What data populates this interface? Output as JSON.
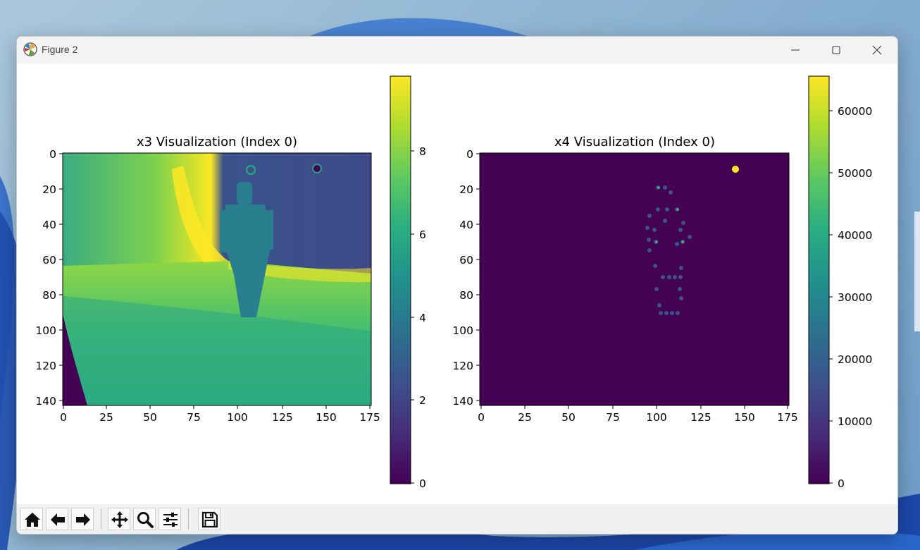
{
  "window": {
    "title": "Figure 2"
  },
  "charts": [
    {
      "id": "x3",
      "title": "x3 Visualization (Index 0)",
      "xticks": [
        "0",
        "25",
        "50",
        "75",
        "100",
        "125",
        "150",
        "175"
      ],
      "yticks": [
        "0",
        "20",
        "40",
        "60",
        "80",
        "100",
        "120",
        "140"
      ],
      "colorbar_ticks": [
        "0",
        "2",
        "4",
        "6",
        "8"
      ]
    },
    {
      "id": "x4",
      "title": "x4 Visualization (Index 0)",
      "xticks": [
        "0",
        "25",
        "50",
        "75",
        "100",
        "125",
        "150",
        "175"
      ],
      "yticks": [
        "0",
        "20",
        "40",
        "60",
        "80",
        "100",
        "120",
        "140"
      ],
      "colorbar_ticks": [
        "0",
        "10000",
        "20000",
        "30000",
        "40000",
        "50000",
        "60000"
      ]
    }
  ],
  "chart_data": [
    {
      "type": "heatmap",
      "title": "x3 Visualization (Index 0)",
      "colormap": "viridis",
      "xlim": [
        0,
        176
      ],
      "ylim": [
        144,
        0
      ],
      "xticks": [
        0,
        25,
        50,
        75,
        100,
        125,
        150,
        175
      ],
      "yticks": [
        0,
        20,
        40,
        60,
        80,
        100,
        120,
        140
      ],
      "color_range": [
        0,
        9.8
      ],
      "colorbar_ticks": [
        0,
        2,
        4,
        6,
        8
      ]
    },
    {
      "type": "heatmap",
      "title": "x4 Visualization (Index 0)",
      "colormap": "viridis",
      "xlim": [
        0,
        176
      ],
      "ylim": [
        144,
        0
      ],
      "xticks": [
        0,
        25,
        50,
        75,
        100,
        125,
        150,
        175
      ],
      "yticks": [
        0,
        20,
        40,
        60,
        80,
        100,
        120,
        140
      ],
      "color_range": [
        0,
        65500
      ],
      "colorbar_ticks": [
        0,
        10000,
        20000,
        30000,
        40000,
        50000,
        60000
      ]
    }
  ],
  "toolbar": {
    "icons": [
      "home-icon",
      "back-arrow-icon",
      "forward-arrow-icon",
      "pan-icon",
      "zoom-icon",
      "configure-subplots-icon",
      "save-icon"
    ]
  },
  "colors": {
    "viridis_low": "#440154",
    "viridis_mid": "#21918c",
    "viridis_high": "#fde725"
  }
}
